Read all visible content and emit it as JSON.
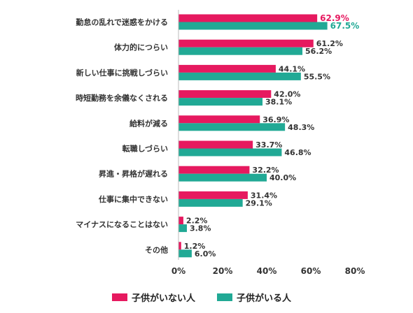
{
  "colors": {
    "series_a": "#e6195f",
    "series_b": "#21a995",
    "axis": "#bbbbbb",
    "text": "#333333"
  },
  "chart_data": {
    "type": "bar",
    "orientation": "horizontal",
    "categories": [
      "勤怠の乱れで迷惑をかける",
      "体力的につらい",
      "新しい仕事に挑戦しづらい",
      "時短勤務を余儀なくされる",
      "給料が減る",
      "転職しづらい",
      "昇進・昇格が遅れる",
      "仕事に集中できない",
      "マイナスになることはない",
      "その他"
    ],
    "series": [
      {
        "name": "子供がいない人",
        "values": [
          62.9,
          61.2,
          44.1,
          42.0,
          36.9,
          33.7,
          32.2,
          31.4,
          2.2,
          1.2
        ],
        "labels": [
          "62.9%",
          "61.2%",
          "44.1%",
          "42.0%",
          "36.9%",
          "33.7%",
          "32.2%",
          "31.4%",
          "2.2%",
          "1.2%"
        ]
      },
      {
        "name": "子供がいる人",
        "values": [
          67.5,
          56.2,
          55.5,
          38.1,
          48.3,
          46.8,
          40.0,
          29.1,
          3.8,
          6.0
        ],
        "labels": [
          "67.5%",
          "56.2%",
          "55.5%",
          "38.1%",
          "48.3%",
          "46.8%",
          "40.0%",
          "29.1%",
          "3.8%",
          "6.0%"
        ]
      }
    ],
    "xlim": [
      0,
      80
    ],
    "xticks": [
      "0%",
      "20%",
      "40%",
      "60%",
      "80%"
    ],
    "xtick_values": [
      0,
      20,
      40,
      60,
      80
    ],
    "grid": false,
    "legend_placement": "bottom"
  }
}
